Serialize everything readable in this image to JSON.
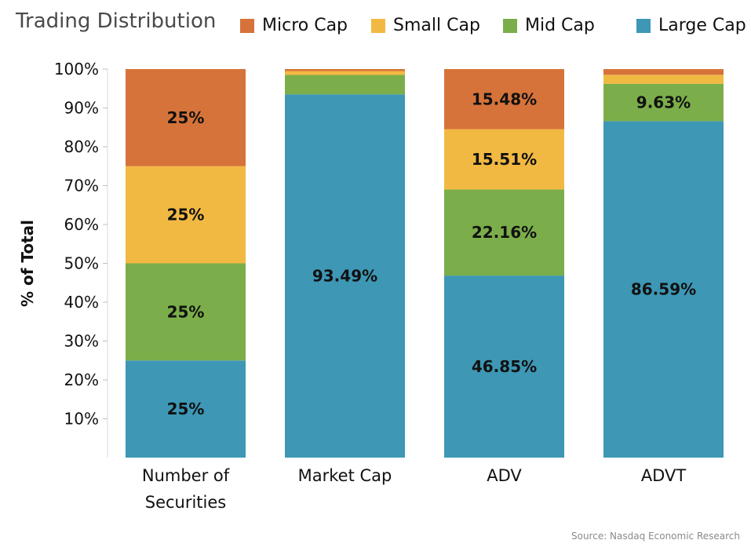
{
  "chart_data": {
    "type": "bar",
    "stacked": true,
    "title": "Trading Distribution",
    "ylabel": "% of Total",
    "xlabel": "",
    "ylim": [
      0,
      100
    ],
    "yticks": [
      "10%",
      "20%",
      "30%",
      "40%",
      "50%",
      "60%",
      "70%",
      "80%",
      "90%",
      "100%"
    ],
    "legend_position": "top",
    "legend_order": [
      "Micro Cap",
      "Small Cap",
      "Mid Cap",
      "Large Cap"
    ],
    "categories": [
      [
        "Number of",
        "Securities"
      ],
      [
        "Market Cap"
      ],
      [
        "ADV"
      ],
      [
        "ADVT"
      ]
    ],
    "series": [
      {
        "name": "Large Cap",
        "color": "#3d97b5",
        "values": [
          25,
          93.49,
          46.85,
          86.59
        ],
        "labels": [
          "25%",
          "93.49%",
          "46.85%",
          "86.59%"
        ]
      },
      {
        "name": "Mid Cap",
        "color": "#7bae4a",
        "values": [
          25,
          5.0,
          22.16,
          9.63
        ],
        "labels": [
          "25%",
          "",
          "22.16%",
          "9.63%"
        ]
      },
      {
        "name": "Small Cap",
        "color": "#f2b942",
        "values": [
          25,
          1.0,
          15.51,
          2.3
        ],
        "labels": [
          "25%",
          "",
          "15.51%",
          ""
        ]
      },
      {
        "name": "Micro Cap",
        "color": "#d6733a",
        "values": [
          25,
          0.51,
          15.48,
          1.48
        ],
        "labels": [
          "25%",
          "",
          "15.48%",
          ""
        ]
      }
    ],
    "source": "Source: Nasdaq Economic Research"
  }
}
